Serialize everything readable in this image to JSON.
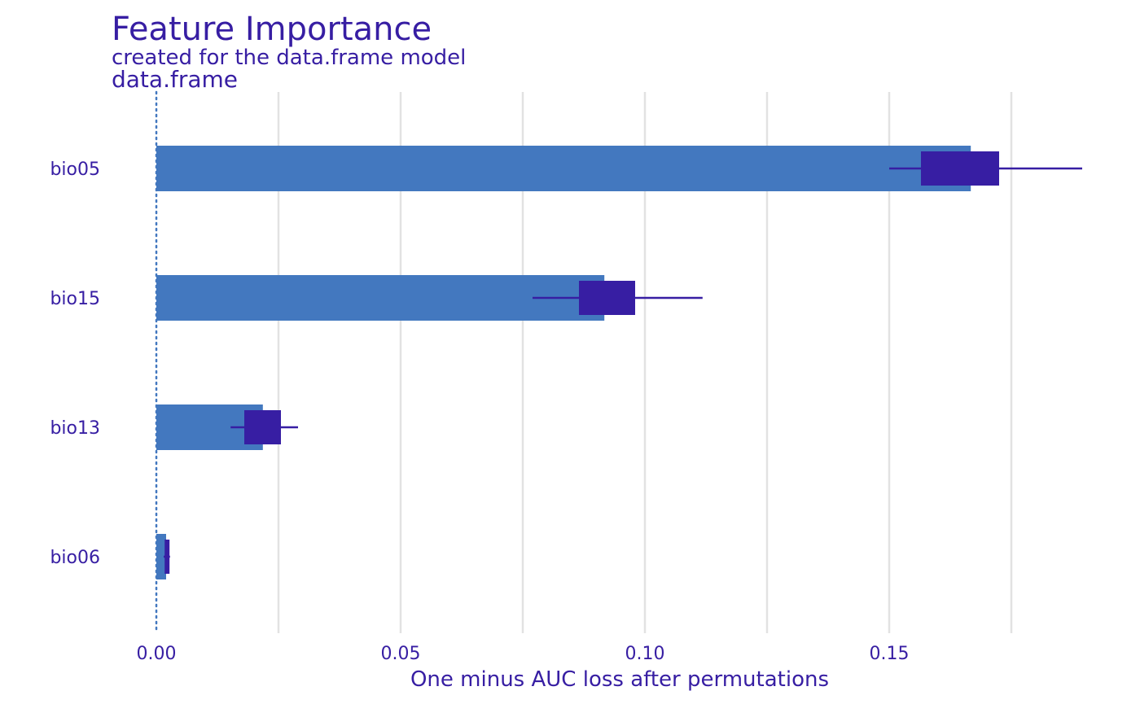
{
  "chart_data": {
    "type": "bar",
    "title": "Feature Importance",
    "subtitle": "created for the data.frame model",
    "panel_label": "data.frame",
    "xlabel": "One minus AUC loss after permutations",
    "ylabel": "",
    "xlim": [
      0,
      0.1895
    ],
    "x_ticks": [
      0.0,
      0.05,
      0.1,
      0.15
    ],
    "x_tick_labels": [
      "0.00",
      "0.05",
      "0.10",
      "0.15"
    ],
    "baseline": 0,
    "grid": true,
    "legend": "none",
    "colors": {
      "bar": "#4378bf",
      "box": "#371ea3",
      "text": "#371ea3",
      "baseline": "#4378bf"
    },
    "categories": [
      "bio05",
      "bio15",
      "bio13",
      "bio06"
    ],
    "values": [
      0.1667,
      0.0917,
      0.0218,
      0.002
    ],
    "boxplots": [
      {
        "min": 0.15,
        "q1": 0.1565,
        "q3": 0.1725,
        "max": 0.1895
      },
      {
        "min": 0.077,
        "q1": 0.0865,
        "q3": 0.098,
        "max": 0.1118
      },
      {
        "min": 0.0152,
        "q1": 0.018,
        "q3": 0.0255,
        "max": 0.029
      },
      {
        "min": 0.0015,
        "q1": 0.0017,
        "q3": 0.0027,
        "max": 0.0028
      }
    ]
  }
}
